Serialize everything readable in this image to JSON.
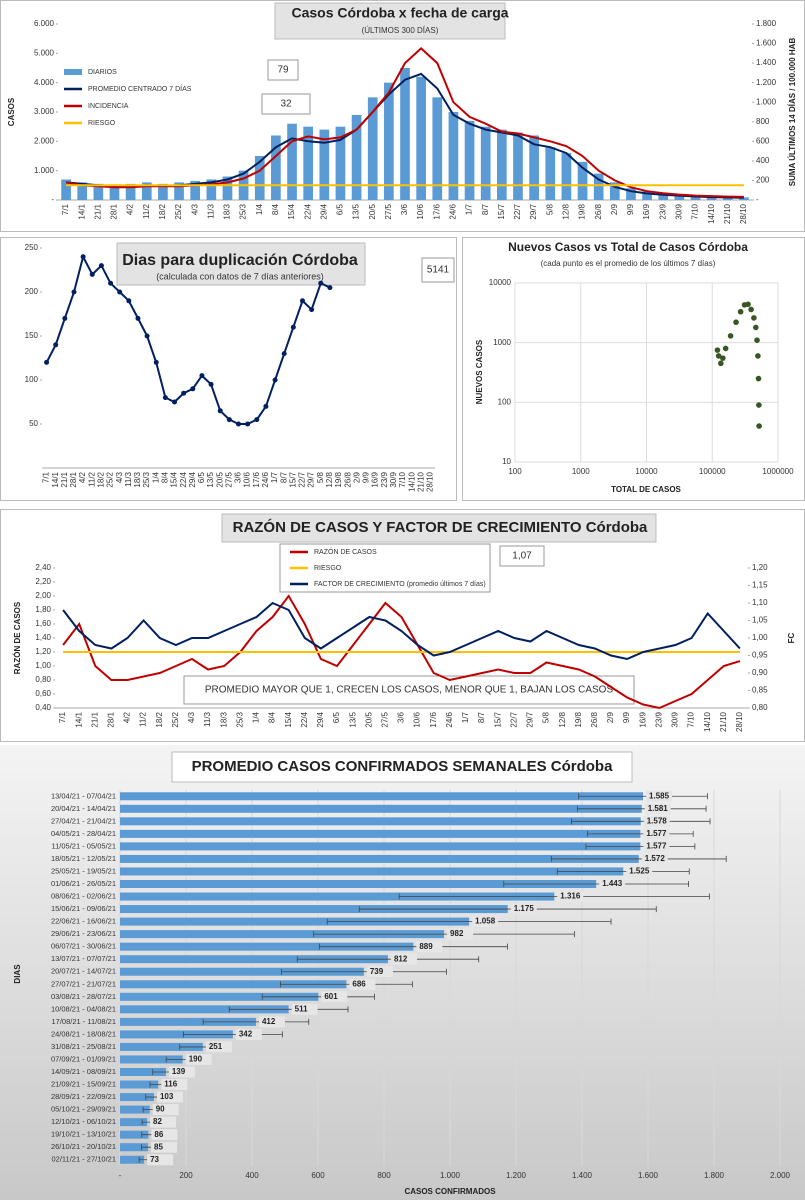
{
  "chart_data": [
    {
      "type": "bar",
      "title": "Casos Córdoba x fecha de carga",
      "subtitle": "(ÚLTIMOS 300 DÍAS)",
      "ylabel": "CASOS",
      "y2label": "SUMA ÚLTIMOS 14 DÍAS / 100.000 HAB",
      "categories": [
        "7/1",
        "14/1",
        "21/1",
        "28/1",
        "4/2",
        "11/2",
        "18/2",
        "25/2",
        "4/3",
        "11/3",
        "18/3",
        "25/3",
        "1/4",
        "8/4",
        "15/4",
        "22/4",
        "29/4",
        "6/5",
        "13/5",
        "20/5",
        "27/5",
        "3/6",
        "10/6",
        "17/6",
        "24/6",
        "1/7",
        "8/7",
        "15/7",
        "22/7",
        "29/7",
        "5/8",
        "12/8",
        "19/8",
        "26/8",
        "2/9",
        "9/9",
        "16/9",
        "23/9",
        "30/9",
        "7/10",
        "14/10",
        "21/10",
        "28/10"
      ],
      "series": [
        {
          "name": "DIARIOS",
          "type": "bar",
          "color": "#5b9bd5",
          "values": [
            700,
            600,
            550,
            500,
            550,
            600,
            550,
            600,
            650,
            700,
            800,
            1000,
            1500,
            2200,
            2600,
            2500,
            2400,
            2500,
            2900,
            3500,
            4000,
            4500,
            4200,
            3500,
            3000,
            2700,
            2500,
            2400,
            2300,
            2200,
            1800,
            1600,
            1300,
            900,
            600,
            400,
            300,
            250,
            200,
            150,
            120,
            100,
            90
          ]
        },
        {
          "name": "PROMEDIO CENTRADO 7 DÍAS",
          "type": "line",
          "color": "#002060",
          "values": [
            600,
            550,
            500,
            450,
            450,
            500,
            480,
            500,
            550,
            600,
            700,
            900,
            1300,
            1800,
            2100,
            2000,
            1950,
            2050,
            2400,
            3000,
            3600,
            4100,
            4300,
            3800,
            2900,
            2600,
            2400,
            2300,
            2200,
            1900,
            1800,
            1600,
            1100,
            700,
            450,
            300,
            220,
            180,
            150,
            120,
            100,
            90,
            79
          ]
        },
        {
          "name": "INCIDENCIA",
          "type": "line",
          "color": "#c00000",
          "axis": "y2",
          "values": [
            180,
            150,
            140,
            130,
            130,
            140,
            140,
            140,
            150,
            160,
            180,
            220,
            300,
            450,
            600,
            650,
            620,
            640,
            720,
            900,
            1100,
            1400,
            1550,
            1400,
            1000,
            850,
            780,
            700,
            680,
            640,
            600,
            550,
            450,
            300,
            200,
            130,
            90,
            70,
            55,
            45,
            40,
            35,
            32
          ]
        },
        {
          "name": "RIESGO",
          "type": "line",
          "color": "#ffc000",
          "axis": "y2",
          "values": [
            150,
            150,
            150,
            150,
            150,
            150,
            150,
            150,
            150,
            150,
            150,
            150,
            150,
            150,
            150,
            150,
            150,
            150,
            150,
            150,
            150,
            150,
            150,
            150,
            150,
            150,
            150,
            150,
            150,
            150,
            150,
            150,
            150,
            150,
            150,
            150,
            150,
            150,
            150,
            150,
            150,
            150,
            150
          ]
        }
      ],
      "ylim": [
        0,
        6000
      ],
      "yticks": [
        {
          "value": 0,
          "label": "-"
        },
        {
          "value": 1000,
          "label": "1.000"
        },
        {
          "value": 2000,
          "label": "2.000"
        },
        {
          "value": 3000,
          "label": "3.000"
        },
        {
          "value": 4000,
          "label": "4.000"
        },
        {
          "value": 5000,
          "label": "5.000"
        },
        {
          "value": 6000,
          "label": "6.000"
        }
      ],
      "y2lim": [
        0,
        1800
      ],
      "y2ticks": [
        {
          "value": 0,
          "label": "-"
        },
        200,
        400,
        600,
        800,
        {
          "value": 1000,
          "label": "1.000"
        },
        {
          "value": 1200,
          "label": "1.200"
        },
        {
          "value": 1400,
          "label": "1.400"
        },
        {
          "value": 1600,
          "label": "1.600"
        },
        {
          "value": 1800,
          "label": "1.800"
        }
      ],
      "annotations": [
        "79",
        "32"
      ]
    },
    {
      "type": "line",
      "title": "Dias para duplicación Córdoba",
      "subtitle": "(calculada con datos de 7 días anteriores)",
      "categories": [
        "7/1",
        "14/1",
        "21/1",
        "28/1",
        "4/2",
        "11/2",
        "18/2",
        "25/2",
        "4/3",
        "11/3",
        "18/3",
        "25/3",
        "1/4",
        "8/4",
        "15/4",
        "22/4",
        "29/4",
        "6/5",
        "13/5",
        "20/5",
        "27/5",
        "3/6",
        "10/6",
        "17/6",
        "24/6",
        "1/7",
        "8/7",
        "15/7",
        "22/7",
        "29/7",
        "5/8",
        "12/8",
        "19/8",
        "26/8",
        "2/9",
        "9/9",
        "16/9",
        "23/9",
        "30/9",
        "7/10",
        "14/10",
        "21/10",
        "28/10"
      ],
      "series": [
        {
          "type": "line",
          "color": "#002060",
          "markers": true,
          "values": [
            120,
            140,
            170,
            200,
            240,
            220,
            230,
            210,
            200,
            190,
            170,
            150,
            120,
            80,
            75,
            85,
            90,
            105,
            95,
            65,
            55,
            50,
            50,
            55,
            70,
            100,
            130,
            160,
            190,
            180,
            210,
            205,
            null,
            null,
            null,
            null,
            null,
            null,
            null,
            null,
            null,
            null,
            null
          ]
        }
      ],
      "ylim": [
        0,
        250
      ],
      "yticks": [
        50,
        100,
        150,
        200,
        250
      ],
      "annotations": [
        "5141"
      ]
    },
    {
      "type": "scatter",
      "title": "Nuevos Casos vs Total de Casos Córdoba",
      "subtitle": "(cada punto es el promedio de los últimos 7 días)",
      "xlabel": "TOTAL DE CASOS",
      "ylabel": "NUEVOS CASOS",
      "color": "#375623",
      "x": [
        120000,
        125000,
        135000,
        145000,
        160000,
        190000,
        230000,
        270000,
        310000,
        350000,
        390000,
        430000,
        460000,
        480000,
        495000,
        505000,
        512000,
        516000
      ],
      "values": [
        750,
        600,
        450,
        550,
        800,
        1300,
        2200,
        3300,
        4300,
        4400,
        3600,
        2600,
        1800,
        1100,
        600,
        250,
        90,
        40
      ],
      "xscale": "log",
      "yscale": "log",
      "grid": true,
      "xlim": [
        100,
        1000000
      ],
      "xticks": [
        100,
        1000,
        10000,
        100000,
        1000000
      ],
      "ylim": [
        10,
        10000
      ],
      "yticks": [
        10,
        100,
        1000,
        10000
      ]
    },
    {
      "type": "line",
      "title": "RAZÓN DE CASOS Y FACTOR DE CRECIMIENTO Córdoba",
      "ylabel": "RAZÓN DE CASOS",
      "y2label": "FC",
      "categories": [
        "7/1",
        "14/1",
        "21/1",
        "28/1",
        "4/2",
        "11/2",
        "18/2",
        "25/2",
        "4/3",
        "11/3",
        "18/3",
        "25/3",
        "1/4",
        "8/4",
        "15/4",
        "22/4",
        "29/4",
        "6/5",
        "13/5",
        "20/5",
        "27/5",
        "3/6",
        "10/6",
        "17/6",
        "24/6",
        "1/7",
        "8/7",
        "15/7",
        "22/7",
        "29/7",
        "5/8",
        "12/8",
        "19/8",
        "26/8",
        "2/9",
        "9/9",
        "16/9",
        "23/9",
        "30/9",
        "7/10",
        "14/10",
        "21/10",
        "28/10"
      ],
      "series": [
        {
          "name": "RAZÓN DE CASOS",
          "type": "line",
          "color": "#c00000",
          "values": [
            1.3,
            1.6,
            1.0,
            0.8,
            0.8,
            0.85,
            0.9,
            1.0,
            1.1,
            0.95,
            1.0,
            1.2,
            1.5,
            1.7,
            2.0,
            1.6,
            1.1,
            1.0,
            1.3,
            1.6,
            1.9,
            1.7,
            1.3,
            0.9,
            0.8,
            0.85,
            0.9,
            0.95,
            0.9,
            0.9,
            1.05,
            1.0,
            0.95,
            0.85,
            0.7,
            0.55,
            0.45,
            0.4,
            0.5,
            0.6,
            0.8,
            1.0,
            1.07
          ]
        },
        {
          "name": "RIESGO",
          "type": "line",
          "color": "#ffc000",
          "values": [
            1.2,
            1.2,
            1.2,
            1.2,
            1.2,
            1.2,
            1.2,
            1.2,
            1.2,
            1.2,
            1.2,
            1.2,
            1.2,
            1.2,
            1.2,
            1.2,
            1.2,
            1.2,
            1.2,
            1.2,
            1.2,
            1.2,
            1.2,
            1.2,
            1.2,
            1.2,
            1.2,
            1.2,
            1.2,
            1.2,
            1.2,
            1.2,
            1.2,
            1.2,
            1.2,
            1.2,
            1.2,
            1.2,
            1.2,
            1.2,
            1.2,
            1.2,
            1.2
          ]
        },
        {
          "name": "FACTOR DE CRECIMIENTO (promedio últimos 7 días)",
          "type": "line",
          "color": "#002060",
          "axis": "y2",
          "values": [
            1.08,
            1.02,
            0.98,
            0.97,
            1.0,
            1.05,
            1.0,
            0.98,
            1.0,
            1.0,
            1.02,
            1.04,
            1.06,
            1.1,
            1.08,
            1.0,
            0.97,
            1.0,
            1.03,
            1.06,
            1.05,
            1.02,
            0.98,
            0.95,
            0.96,
            0.98,
            1.0,
            1.02,
            1.0,
            0.99,
            1.02,
            1.0,
            0.98,
            0.97,
            0.95,
            0.94,
            0.96,
            0.97,
            0.98,
            1.0,
            1.07,
            1.02,
            0.97
          ]
        }
      ],
      "ylim": [
        0.4,
        2.4
      ],
      "yticks": [
        {
          "value": 0.4,
          "label": "0,40"
        },
        {
          "value": 0.6,
          "label": "0,60"
        },
        {
          "value": 0.8,
          "label": "0,80"
        },
        {
          "value": 1.0,
          "label": "1,00"
        },
        {
          "value": 1.2,
          "label": "1,20"
        },
        {
          "value": 1.4,
          "label": "1,40"
        },
        {
          "value": 1.6,
          "label": "1,60"
        },
        {
          "value": 1.8,
          "label": "1,80"
        },
        {
          "value": 2.0,
          "label": "2,00"
        },
        {
          "value": 2.2,
          "label": "2,20"
        },
        {
          "value": 2.4,
          "label": "2,40"
        }
      ],
      "y2lim": [
        0.8,
        1.2
      ],
      "y2ticks": [
        {
          "value": 0.8,
          "label": "0,80"
        },
        {
          "value": 0.85,
          "label": "0,85"
        },
        {
          "value": 0.9,
          "label": "0,90"
        },
        {
          "value": 0.95,
          "label": "0,95"
        },
        {
          "value": 1.0,
          "label": "1,00"
        },
        {
          "value": 1.05,
          "label": "1,05"
        },
        {
          "value": 1.1,
          "label": "1,10"
        },
        {
          "value": 1.15,
          "label": "1,15"
        },
        {
          "value": 1.2,
          "label": "1,20"
        }
      ],
      "annotations": [
        "1,07",
        "PROMEDIO MAYOR QUE 1, CRECEN LOS CASOS, MENOR QUE 1, BAJAN LOS CASOS"
      ]
    },
    {
      "type": "bar",
      "orientation": "horizontal",
      "title": "PROMEDIO CASOS CONFIRMADOS SEMANALES Córdoba",
      "xlabel": "CASOS CONFIRMADOS",
      "ylabel": "DIAS",
      "color": "#5b9bd5",
      "grid": true,
      "categories": [
        "13/04/21 - 07/04/21",
        "20/04/21 - 14/04/21",
        "27/04/21 - 21/04/21",
        "04/05/21 - 28/04/21",
        "11/05/21 - 05/05/21",
        "18/05/21 - 12/05/21",
        "25/05/21 - 19/05/21",
        "01/06/21 - 26/05/21",
        "08/06/21 - 02/06/21",
        "15/06/21 - 09/06/21",
        "22/06/21 - 16/06/21",
        "29/06/21 - 23/06/21",
        "06/07/21 - 30/06/21",
        "13/07/21 - 07/07/21",
        "20/07/21 - 14/07/21",
        "27/07/21 - 21/07/21",
        "03/08/21 - 28/07/21",
        "10/08/21 - 04/08/21",
        "17/08/21 - 11/08/21",
        "24/08/21 - 18/08/21",
        "31/08/21 - 25/08/21",
        "07/09/21 - 01/09/21",
        "14/09/21 - 08/09/21",
        "21/09/21 - 15/09/21",
        "28/09/21 - 22/09/21",
        "05/10/21 - 29/09/21",
        "12/10/21 - 06/10/21",
        "19/10/21 - 13/10/21",
        "26/10/21 - 20/10/21",
        "02/11/21 - 27/10/21"
      ],
      "values": [
        1585,
        1581,
        1578,
        1577,
        1577,
        1572,
        1525,
        1443,
        1316,
        1175,
        1058,
        982,
        889,
        812,
        739,
        686,
        601,
        511,
        412,
        342,
        251,
        190,
        139,
        116,
        103,
        90,
        82,
        86,
        85,
        73
      ],
      "value_labels": [
        "1.585",
        "1.581",
        "1.578",
        "1.577",
        "1.577",
        "1.572",
        "1.525",
        "1.443",
        "1.316",
        "1.175",
        "1.058",
        "982",
        "889",
        "812",
        "739",
        "686",
        "601",
        "511",
        "412",
        "342",
        "251",
        "190",
        "139",
        "116",
        "103",
        "90",
        "82",
        "86",
        "85",
        "73"
      ],
      "errors": [
        195,
        195,
        210,
        160,
        165,
        265,
        200,
        280,
        470,
        450,
        430,
        395,
        285,
        275,
        250,
        200,
        170,
        180,
        160,
        150,
        70,
        50,
        40,
        25,
        25,
        20,
        15,
        20,
        20,
        15
      ],
      "xlim": [
        0,
        2000
      ],
      "xticks": [
        {
          "value": 0,
          "label": "-"
        },
        200,
        400,
        600,
        800,
        {
          "value": 1000,
          "label": "1.000"
        },
        {
          "value": 1200,
          "label": "1.200"
        },
        {
          "value": 1400,
          "label": "1.400"
        },
        {
          "value": 1600,
          "label": "1.600"
        },
        {
          "value": 1800,
          "label": "1.800"
        },
        {
          "value": 2000,
          "label": "2.000"
        }
      ]
    }
  ]
}
